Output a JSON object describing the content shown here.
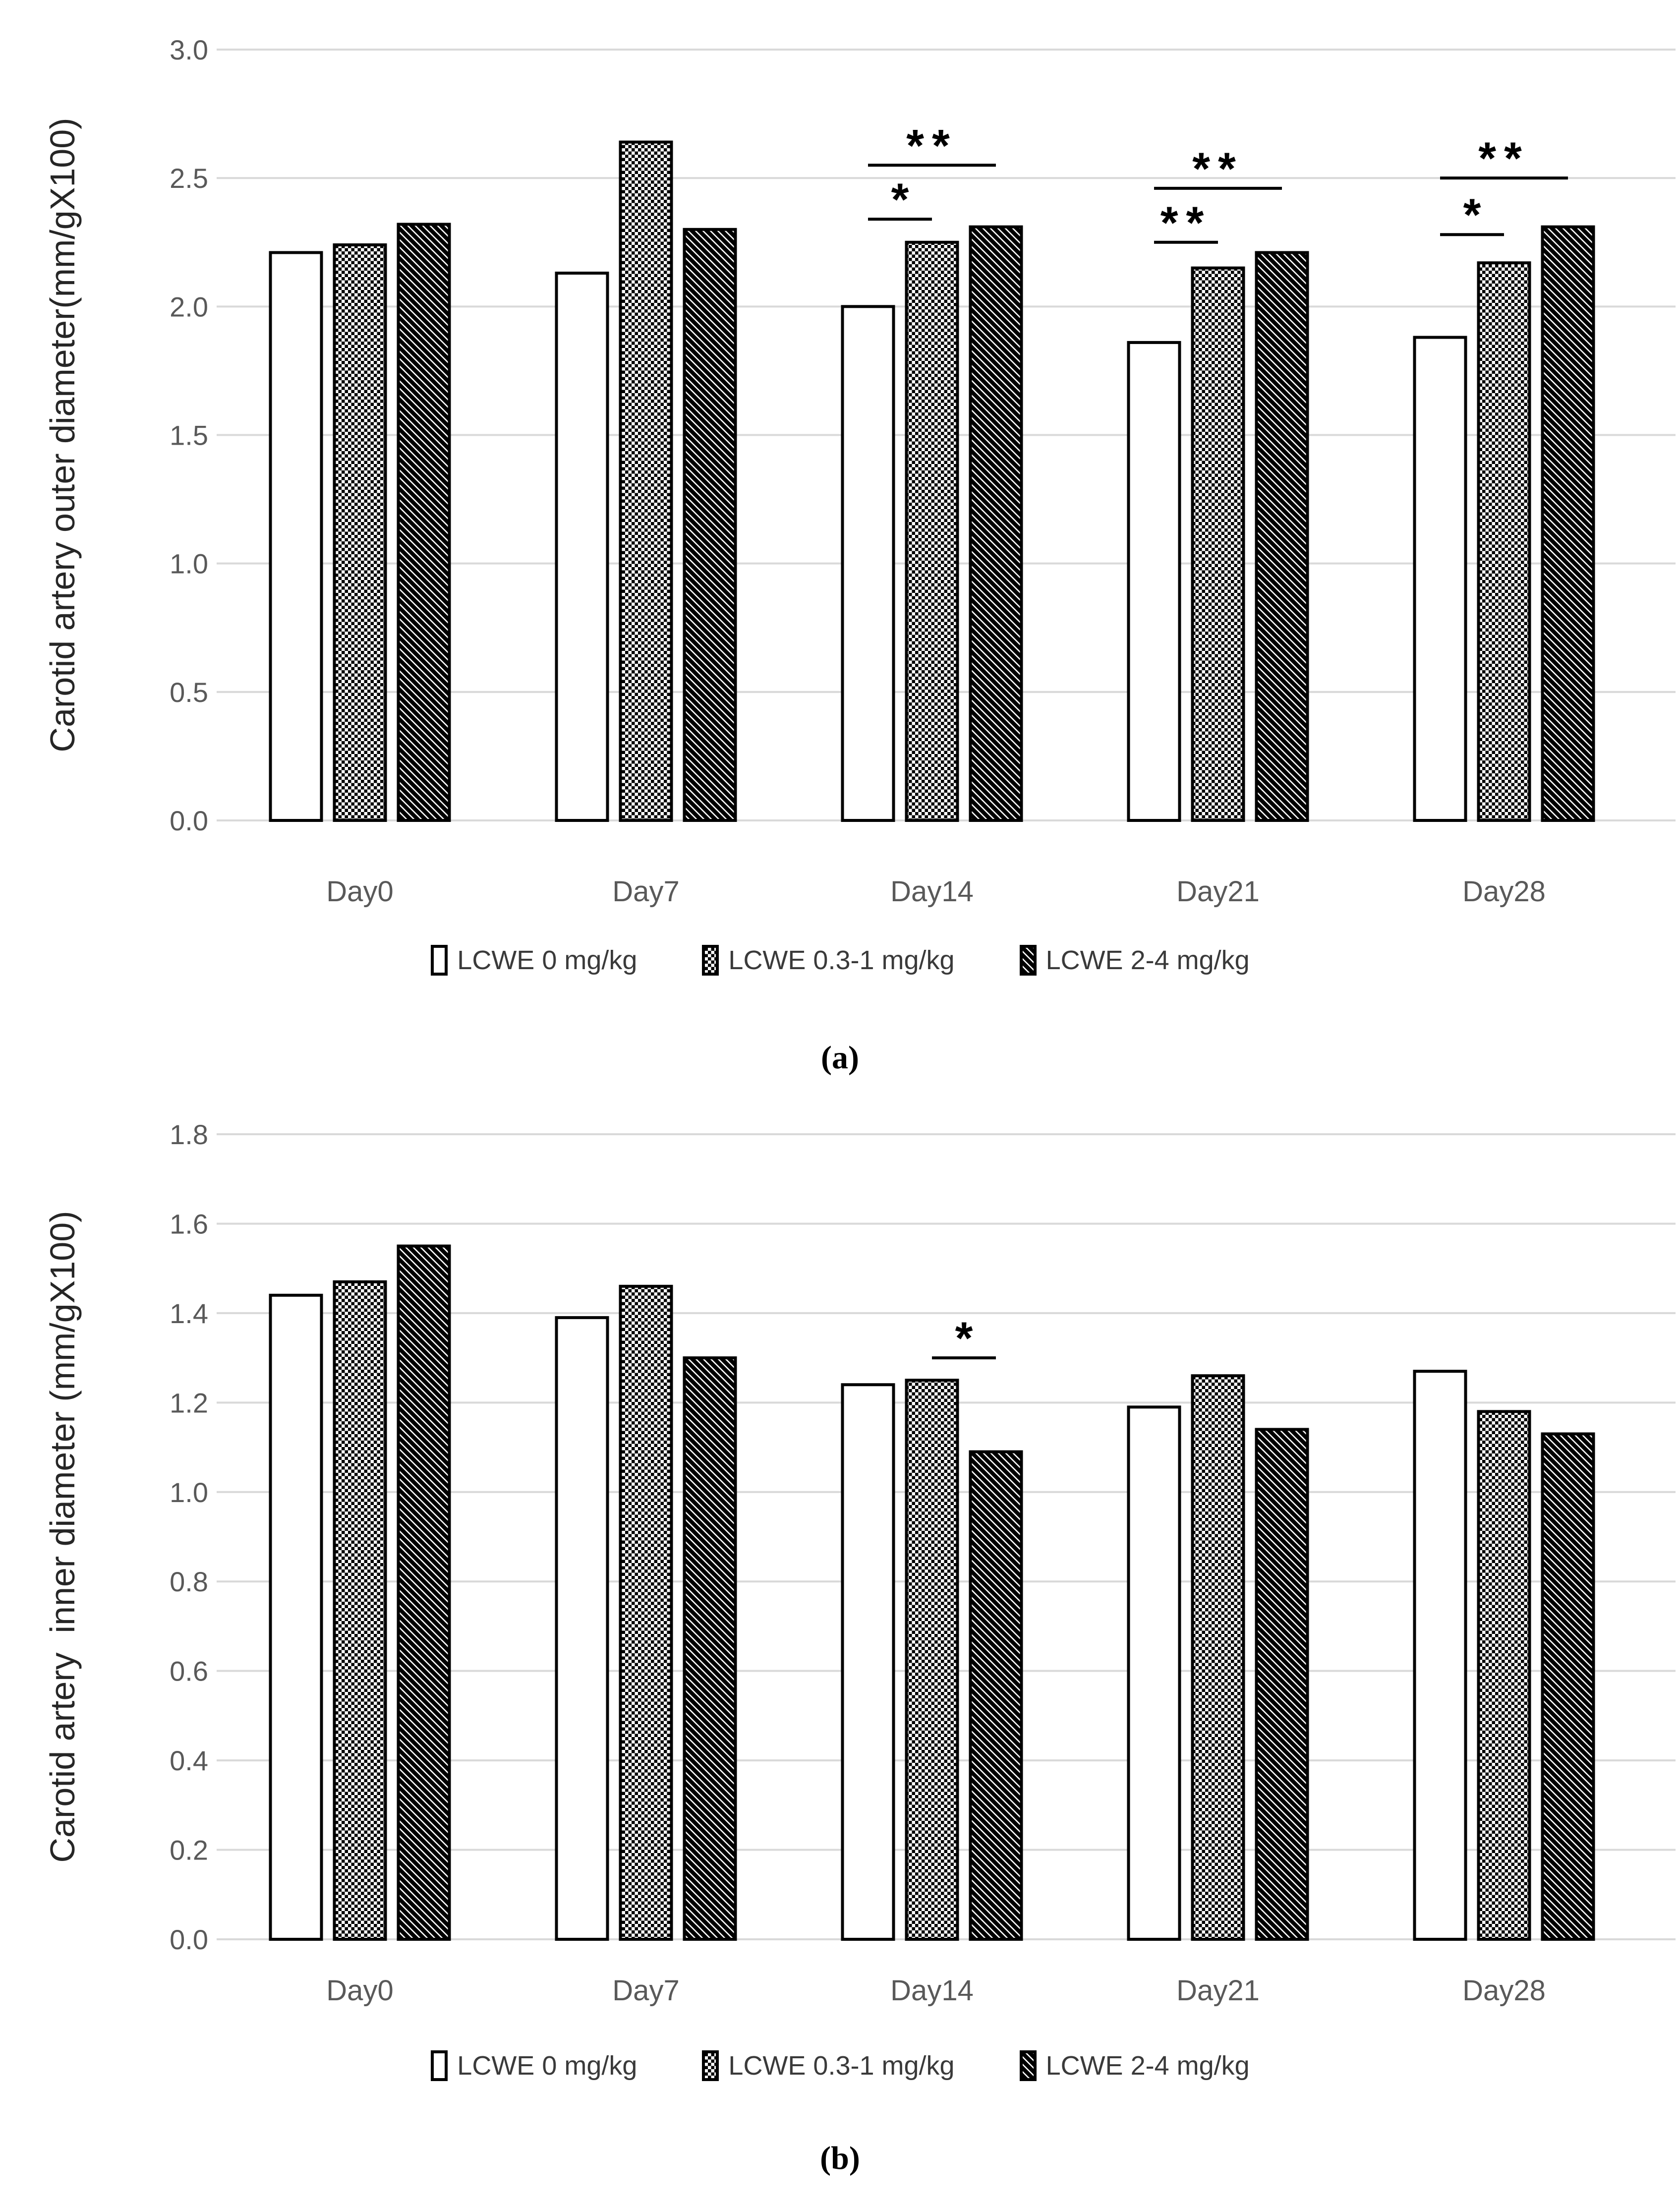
{
  "figure": {
    "background_color": "#ffffff",
    "gridline_color": "#d9d9d9",
    "axis_text_color": "#595959",
    "bar_border_color": "#000000",
    "captions": {
      "a": "(a)",
      "b": "(b)"
    }
  },
  "chart_data": [
    {
      "type": "bar",
      "title": "",
      "xlabel": "",
      "ylabel": "Carotid artery outer diameter(mm/gX100)",
      "ylim": [
        0.0,
        3.0
      ],
      "ytick_step": 0.5,
      "ytick_labels": [
        "0.0",
        "0.5",
        "1.0",
        "1.5",
        "2.0",
        "2.5",
        "3.0"
      ],
      "grid": true,
      "legend_position": "bottom",
      "caption": "(a)",
      "categories": [
        "Day0",
        "Day7",
        "Day14",
        "Day21",
        "Day28"
      ],
      "series": [
        {
          "name": "LCWE 0 mg/kg",
          "pattern": "plain",
          "values": [
            2.21,
            2.13,
            2.0,
            1.86,
            1.88
          ]
        },
        {
          "name": "LCWE 0.3-1 mg/kg",
          "pattern": "checker",
          "values": [
            2.24,
            2.64,
            2.25,
            2.15,
            2.17
          ]
        },
        {
          "name": "LCWE 2-4 mg/kg",
          "pattern": "diagonal",
          "values": [
            2.32,
            2.3,
            2.31,
            2.21,
            2.31
          ]
        }
      ],
      "annotations": [
        {
          "category": "Day14",
          "from_series": 0,
          "to_series": 1,
          "y": 2.34,
          "label": "*"
        },
        {
          "category": "Day14",
          "from_series": 0,
          "to_series": 2,
          "y": 2.55,
          "label": "**"
        },
        {
          "category": "Day21",
          "from_series": 0,
          "to_series": 1,
          "y": 2.25,
          "label": "**"
        },
        {
          "category": "Day21",
          "from_series": 0,
          "to_series": 2,
          "y": 2.46,
          "label": "**"
        },
        {
          "category": "Day28",
          "from_series": 0,
          "to_series": 1,
          "y": 2.28,
          "label": "*"
        },
        {
          "category": "Day28",
          "from_series": 0,
          "to_series": 2,
          "y": 2.5,
          "label": "**"
        }
      ]
    },
    {
      "type": "bar",
      "title": "",
      "xlabel": "",
      "ylabel": "Carotid artery  inner diameter (mm/gX100)",
      "ylim": [
        0.0,
        1.8
      ],
      "ytick_step": 0.2,
      "ytick_labels": [
        "0.0",
        "0.2",
        "0.4",
        "0.6",
        "0.8",
        "1.0",
        "1.2",
        "1.4",
        "1.6",
        "1.8"
      ],
      "grid": true,
      "legend_position": "bottom",
      "caption": "(b)",
      "categories": [
        "Day0",
        "Day7",
        "Day14",
        "Day21",
        "Day28"
      ],
      "series": [
        {
          "name": "LCWE 0 mg/kg",
          "pattern": "plain",
          "values": [
            1.44,
            1.39,
            1.24,
            1.19,
            1.27
          ]
        },
        {
          "name": "LCWE 0.3-1 mg/kg",
          "pattern": "checker",
          "values": [
            1.47,
            1.46,
            1.25,
            1.26,
            1.18
          ]
        },
        {
          "name": "LCWE 2-4 mg/kg",
          "pattern": "diagonal",
          "values": [
            1.55,
            1.3,
            1.09,
            1.14,
            1.13
          ]
        }
      ],
      "annotations": [
        {
          "category": "Day14",
          "from_series": 1,
          "to_series": 2,
          "y": 1.3,
          "label": "*"
        }
      ]
    }
  ]
}
